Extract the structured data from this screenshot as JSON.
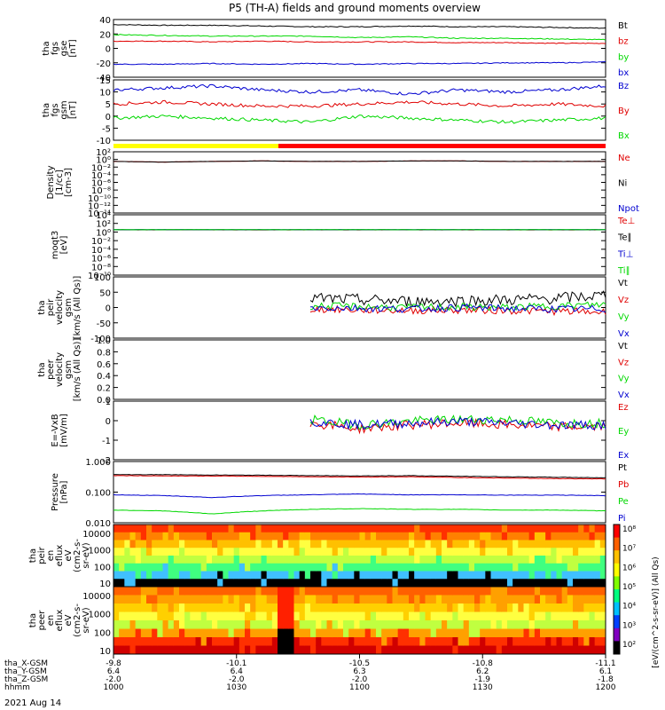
{
  "chart_data": {
    "type": "line",
    "title": "P5 (TH-A) fields and ground moments overview",
    "date_label": "2021 Aug 14",
    "colors": {
      "black": "#000000",
      "red": "#e00000",
      "green": "#00d800",
      "blue": "#0000d0",
      "yellow": "#ffff00",
      "bar_red": "#ff0000"
    },
    "x_axis": {
      "rows": [
        {
          "label": "tha_X-GSM",
          "values": [
            "-9.8",
            "-10.1",
            "-10.5",
            "-10.8",
            "-11.1"
          ]
        },
        {
          "label": "tha_Y-GSM",
          "values": [
            "6.4",
            "6.4",
            "6.3",
            "6.2",
            "6.1"
          ]
        },
        {
          "label": "tha_Z-GSM",
          "values": [
            "-2.0",
            "-2.0",
            "-2.0",
            "-1.9",
            "-1.8"
          ]
        },
        {
          "label": "hhmm",
          "values": [
            "1000",
            "1030",
            "1100",
            "1130",
            "1200"
          ]
        }
      ]
    },
    "panels": [
      {
        "id": "fgs_gse",
        "ylabel": [
          "tha",
          "fgs",
          "gse",
          "[nT]"
        ],
        "yticks": [
          "40",
          "20",
          "0",
          "-20",
          "-40"
        ],
        "ylim": [
          -40,
          40
        ],
        "series": [
          {
            "name": "Bt",
            "color": "black",
            "values": [
              33,
              32,
              32,
              31,
              30,
              30,
              31,
              30,
              30,
              29,
              28
            ]
          },
          {
            "name": "bz",
            "color": "red",
            "values": [
              10,
              10,
              9,
              10,
              9,
              9,
              9,
              8,
              8,
              7,
              7
            ]
          },
          {
            "name": "by",
            "color": "green",
            "values": [
              19,
              18,
              17,
              17,
              17,
              15,
              16,
              14,
              14,
              13,
              12
            ]
          },
          {
            "name": "bx",
            "color": "blue",
            "values": [
              -22,
              -22,
              -21,
              -22,
              -21,
              -22,
              -21,
              -21,
              -20,
              -20,
              -19
            ]
          }
        ]
      },
      {
        "id": "fgs_gsm",
        "ylabel": [
          "tha",
          "fgs",
          "gsm",
          "[nT]"
        ],
        "yticks": [
          "15",
          "10",
          "5",
          "0",
          "-5",
          "-10"
        ],
        "ylim": [
          -15,
          15
        ],
        "series": [
          {
            "name": "Bz",
            "color": "blue",
            "values": [
              10,
              11,
              12,
              10,
              9,
              10,
              8,
              10,
              9,
              10,
              12
            ]
          },
          {
            "name": "By",
            "color": "red",
            "values": [
              3,
              4,
              3,
              2,
              2,
              3,
              4,
              3,
              2,
              3,
              2
            ]
          },
          {
            "name": "Bx",
            "color": "green",
            "values": [
              -4,
              -3,
              -4,
              -5,
              -6,
              -3,
              -4,
              -5,
              -6,
              -5,
              -4
            ]
          }
        ]
      },
      {
        "id": "density",
        "ylabel": [
          "Density",
          "[1/cc]",
          "[cm-3]"
        ],
        "yticks": [
          "10²",
          "10⁰",
          "10⁻²",
          "10⁻⁴",
          "10⁻⁶",
          "10⁻⁸",
          "10⁻¹⁰",
          "10⁻¹²",
          "10⁻¹⁴"
        ],
        "ylog": true,
        "ylim": [
          -14,
          2
        ],
        "series": [
          {
            "name": "Ne",
            "color": "red",
            "values": [
              0.3,
              0.2,
              0.3,
              0.4,
              0.3,
              0.3,
              0.4,
              0.4,
              0.3,
              0.3,
              0.3
            ]
          },
          {
            "name": "Ni",
            "color": "black",
            "values": [
              0.3,
              0.2,
              0.3,
              0.4,
              0.3,
              0.3,
              0.4,
              0.4,
              0.3,
              0.3,
              0.3
            ]
          },
          {
            "name": "Npot",
            "color": "blue",
            "values": []
          }
        ]
      },
      {
        "id": "temperature",
        "ylabel": [
          "moqt3",
          "[eV]"
        ],
        "yticks": [
          "10⁴",
          "10²",
          "10⁰",
          "10⁻²",
          "10⁻⁴",
          "10⁻⁶",
          "10⁻⁸",
          "10⁻¹⁰"
        ],
        "ylog": true,
        "ylim": [
          -10,
          4
        ],
        "series": [
          {
            "name": "Te⊥",
            "color": "red",
            "values": [
              3.2,
              3.2,
              3.2,
              3.1,
              3.2,
              3.2,
              3.2,
              3.2,
              3.2,
              3.1,
              3.2
            ]
          },
          {
            "name": "Te∥",
            "color": "black",
            "values": [
              3.3,
              3.3,
              3.3,
              3.3,
              3.3,
              3.3,
              3.3,
              3.3,
              3.3,
              3.3,
              3.3
            ]
          },
          {
            "name": "Ti⊥",
            "color": "blue",
            "values": [
              3.6,
              3.6,
              3.6,
              3.6,
              3.6,
              3.6,
              3.6,
              3.6,
              3.6,
              3.6,
              3.6
            ]
          },
          {
            "name": "Ti∥",
            "color": "green",
            "values": [
              3.5,
              3.5,
              3.5,
              3.5,
              3.5,
              3.5,
              3.5,
              3.5,
              3.5,
              3.5,
              3.5
            ]
          }
        ]
      },
      {
        "id": "peir_velocity",
        "ylabel": [
          "tha",
          "peir",
          "velocity",
          "gsm",
          "[km/s (All Qs)]"
        ],
        "yticks": [
          "100",
          "50",
          "0",
          "-50",
          "-100"
        ],
        "ylim": [
          -100,
          100
        ],
        "series": [
          {
            "name": "Vt",
            "color": "black",
            "values": [
              null,
              null,
              null,
              null,
              30,
              25,
              20,
              22,
              25,
              30,
              40
            ]
          },
          {
            "name": "Vz",
            "color": "red",
            "values": [
              null,
              null,
              null,
              null,
              -5,
              -8,
              -10,
              -8,
              -10,
              -12,
              -15
            ]
          },
          {
            "name": "Vy",
            "color": "green",
            "values": [
              null,
              null,
              null,
              null,
              5,
              3,
              0,
              2,
              0,
              5,
              10
            ]
          },
          {
            "name": "Vx",
            "color": "blue",
            "values": [
              null,
              null,
              null,
              null,
              0,
              -2,
              -5,
              0,
              -3,
              -5,
              -5
            ]
          }
        ]
      },
      {
        "id": "peer_velocity",
        "ylabel": [
          "tha",
          "peer",
          "velocity",
          "gsm",
          "[km/s (All Qs)]"
        ],
        "yticks": [
          "1.0",
          "0.8",
          "0.6",
          "0.4",
          "0.2",
          "0.0"
        ],
        "ylim": [
          0,
          1
        ],
        "series": [
          {
            "name": "Vt",
            "color": "black",
            "values": []
          },
          {
            "name": "Vz",
            "color": "red",
            "values": []
          },
          {
            "name": "Vy",
            "color": "green",
            "values": []
          },
          {
            "name": "Vx",
            "color": "blue",
            "values": []
          }
        ]
      },
      {
        "id": "efield",
        "ylabel": [
          "E=-VxB",
          "[mV/m]"
        ],
        "yticks": [
          "1",
          "0",
          "-1",
          "-2"
        ],
        "ylim": [
          -2.2,
          1
        ],
        "series": [
          {
            "name": "Ez",
            "color": "red",
            "values": [
              null,
              null,
              null,
              null,
              -0.2,
              -0.5,
              -0.3,
              -0.2,
              -0.3,
              -0.4,
              -0.4
            ]
          },
          {
            "name": "Ey",
            "color": "green",
            "values": [
              null,
              null,
              null,
              null,
              0.0,
              -0.3,
              -0.1,
              0.0,
              0.0,
              -0.2,
              -0.2
            ]
          },
          {
            "name": "Ex",
            "color": "blue",
            "values": [
              null,
              null,
              null,
              null,
              -0.1,
              -0.3,
              -0.2,
              -0.1,
              -0.2,
              -0.3,
              -0.3
            ]
          }
        ]
      },
      {
        "id": "pressure",
        "ylabel": [
          "Pressure",
          "[nPa]"
        ],
        "yticks": [
          "1.000",
          "0.100",
          "0.010"
        ],
        "ylog": true,
        "ylim": [
          -2.5,
          0.3
        ],
        "series": [
          {
            "name": "Pt",
            "color": "black",
            "values": [
              0.5,
              0.5,
              0.48,
              0.47,
              0.45,
              0.44,
              0.45,
              0.42,
              0.4,
              0.38,
              0.36
            ]
          },
          {
            "name": "Pb",
            "color": "red",
            "values": [
              0.45,
              0.44,
              0.43,
              0.42,
              0.4,
              0.39,
              0.4,
              0.37,
              0.35,
              0.33,
              0.32
            ]
          },
          {
            "name": "Pe",
            "color": "green",
            "values": [
              0.012,
              0.011,
              0.008,
              0.011,
              0.013,
              0.014,
              0.013,
              0.013,
              0.012,
              0.012,
              0.011
            ]
          },
          {
            "name": "Pi",
            "color": "blue",
            "values": [
              0.06,
              0.055,
              0.045,
              0.055,
              0.06,
              0.065,
              0.06,
              0.06,
              0.058,
              0.058,
              0.055
            ]
          }
        ]
      },
      {
        "id": "peir_spec",
        "type": "heatmap",
        "ylabel": [
          "tha",
          "peir",
          "en",
          "eflux",
          "eV",
          "(cm2-s-",
          "sr-eV)"
        ],
        "yticks": [
          "10000",
          "1000",
          "100",
          "10"
        ]
      },
      {
        "id": "peer_spec",
        "type": "heatmap",
        "ylabel": [
          "tha",
          "peer",
          "en",
          "eflux",
          "eV",
          "(cm2-s-",
          "sr-eV)"
        ],
        "yticks": [
          "10000",
          "1000",
          "100",
          "10"
        ]
      }
    ],
    "colorbar": {
      "ticks": [
        "10⁸",
        "10⁷",
        "10⁶",
        "10⁵",
        "10⁴",
        "10³",
        "10²"
      ],
      "label": "[eV/(cm^2-s-sr-eV)] (All Qs)"
    }
  }
}
